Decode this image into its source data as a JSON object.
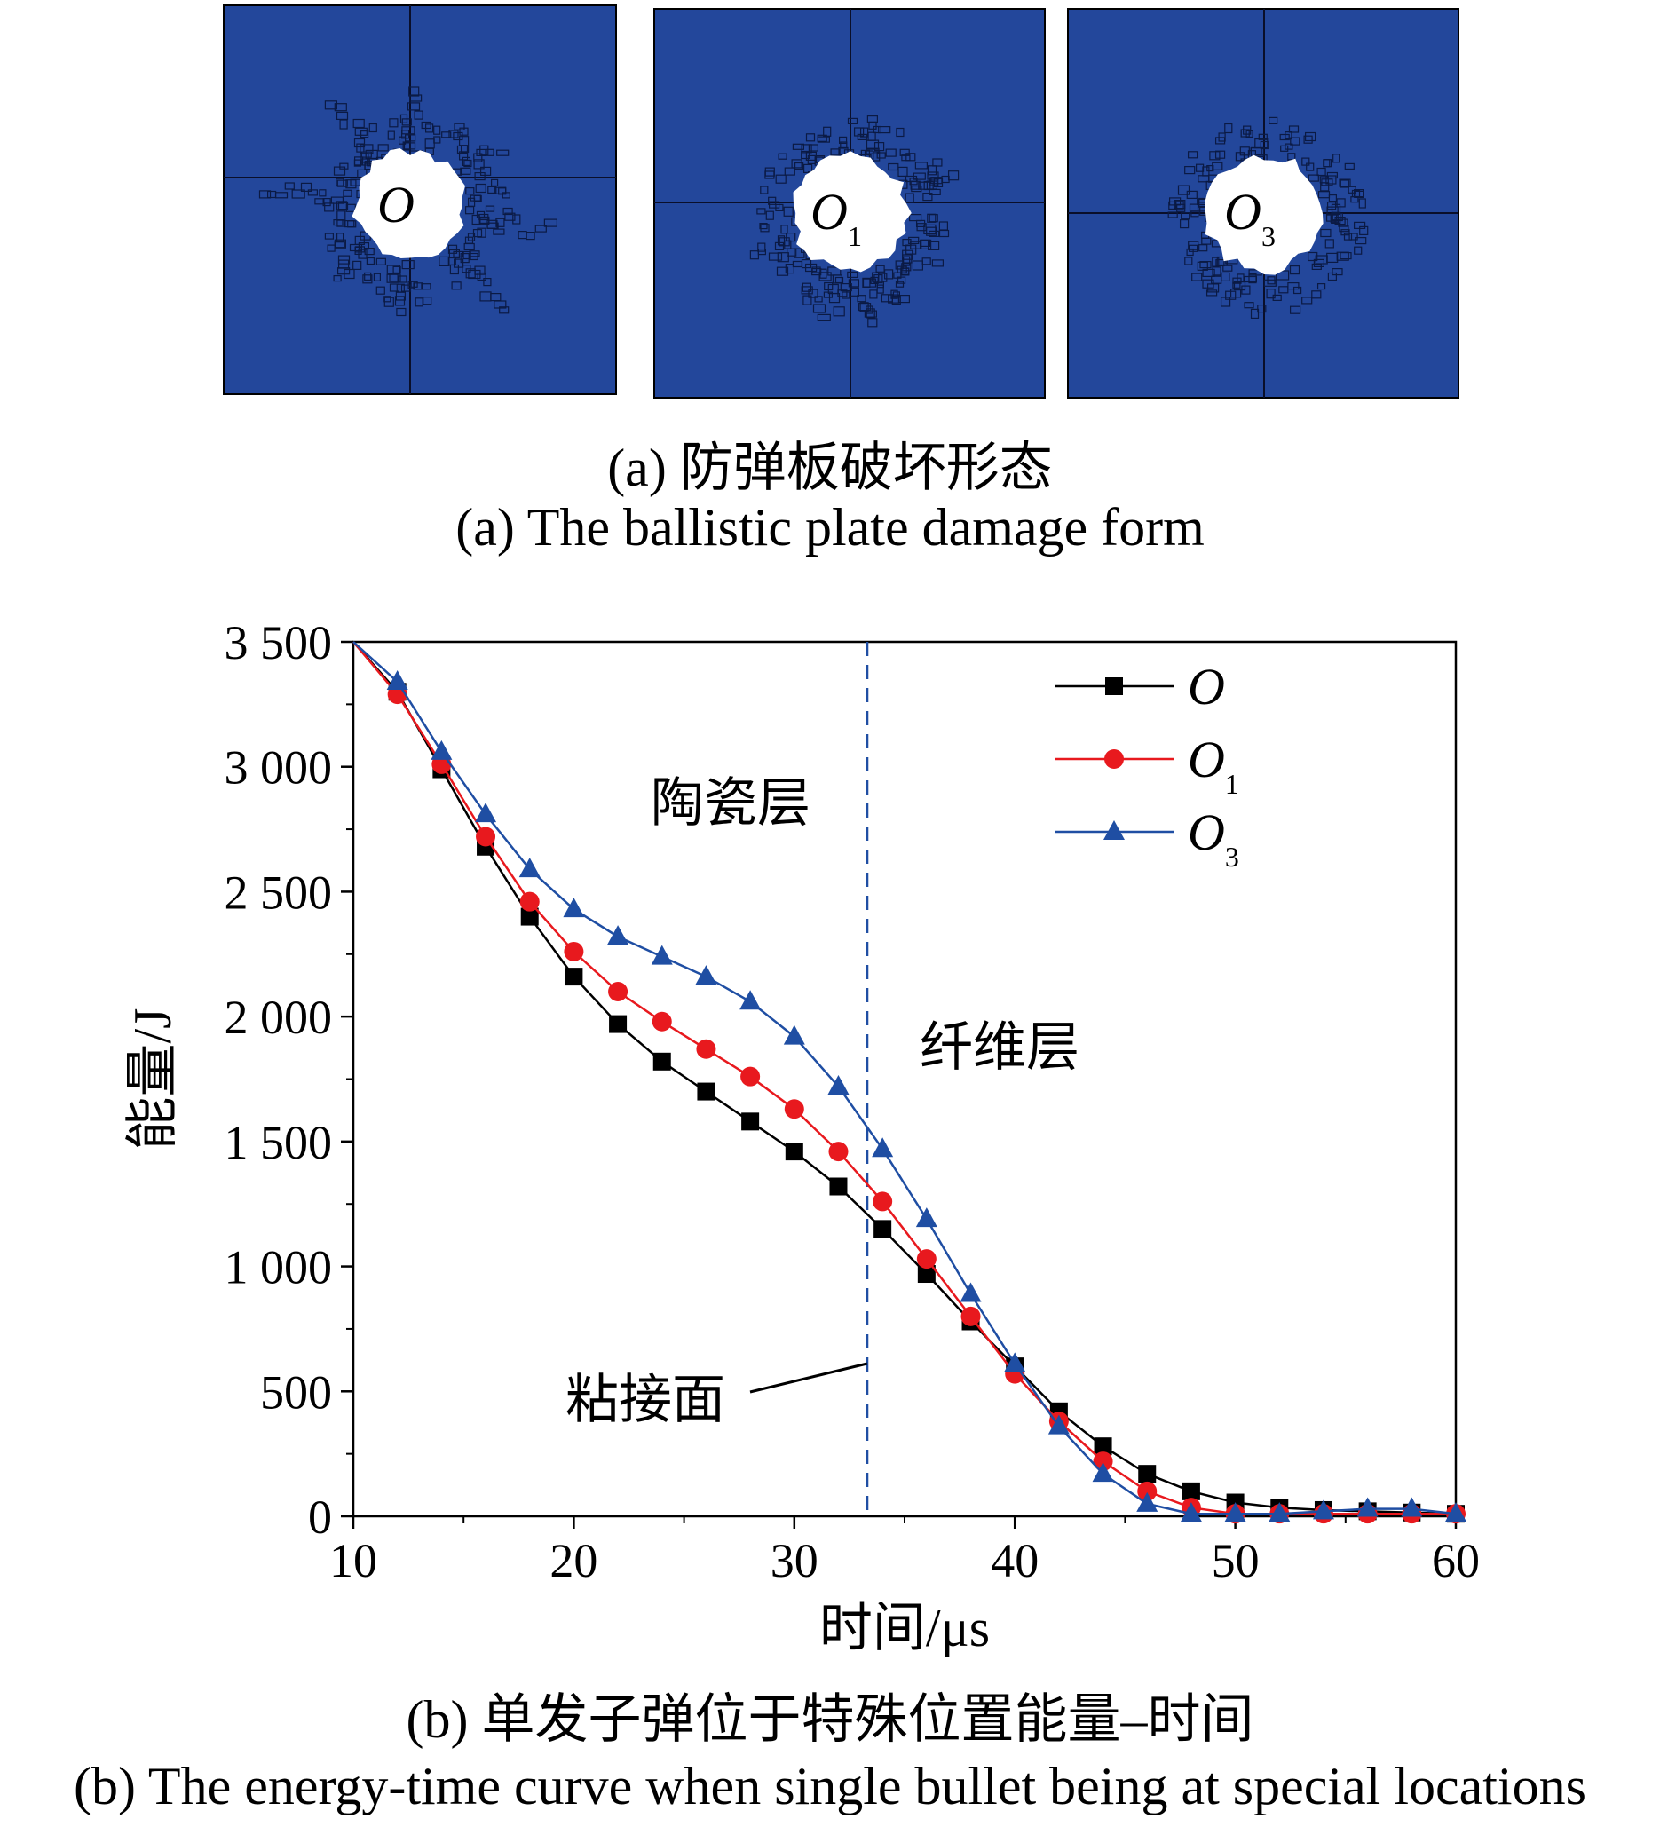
{
  "panel_a": {
    "plates": [
      {
        "label_main": "O",
        "label_sub": ""
      },
      {
        "label_main": "O",
        "label_sub": "1"
      },
      {
        "label_main": "O",
        "label_sub": "3"
      }
    ],
    "colors": {
      "plate": "#23479b",
      "hole": "#ffffff",
      "crack": "#0b1a44"
    },
    "caption_cn": "(a) 防弹板破坏形态",
    "caption_en": "(a) The ballistic plate damage form"
  },
  "chart_data": {
    "type": "line",
    "xlabel": "时间/μs",
    "ylabel": "能量/J",
    "xlim": [
      10,
      60
    ],
    "ylim": [
      0,
      3500
    ],
    "xticks": [
      "10",
      "20",
      "30",
      "40",
      "50",
      "60"
    ],
    "yticks": [
      "0",
      "500",
      "1 000",
      "1 500",
      "2 000",
      "2 500",
      "3 000",
      "3 500"
    ],
    "grid": false,
    "legend_position": "top-right",
    "x": [
      10,
      12,
      14,
      16,
      18,
      20,
      22,
      24,
      26,
      28,
      30,
      32,
      34,
      36,
      38,
      40,
      42,
      44,
      46,
      48,
      50,
      52,
      54,
      56,
      58,
      60
    ],
    "series": [
      {
        "name_main": "O",
        "name_sub": "",
        "color": "#000000",
        "marker": "square",
        "values": [
          3500,
          3300,
          2990,
          2680,
          2400,
          2160,
          1970,
          1820,
          1700,
          1580,
          1460,
          1320,
          1150,
          970,
          780,
          600,
          420,
          280,
          170,
          100,
          55,
          35,
          25,
          20,
          15,
          10
        ]
      },
      {
        "name_main": "O",
        "name_sub": "1",
        "color": "#e8191e",
        "marker": "circle",
        "values": [
          3500,
          3290,
          3010,
          2720,
          2460,
          2260,
          2100,
          1980,
          1870,
          1760,
          1630,
          1460,
          1260,
          1030,
          800,
          570,
          380,
          220,
          100,
          35,
          10,
          10,
          10,
          10,
          10,
          10
        ]
      },
      {
        "name_main": "O",
        "name_sub": "3",
        "color": "#1f4ea3",
        "marker": "triangle",
        "values": [
          3500,
          3340,
          3060,
          2810,
          2590,
          2430,
          2320,
          2240,
          2160,
          2060,
          1920,
          1720,
          1470,
          1190,
          890,
          610,
          360,
          170,
          50,
          10,
          10,
          10,
          20,
          30,
          30,
          10
        ]
      }
    ],
    "annotations": [
      {
        "text": "陶瓷层"
      },
      {
        "text": "纤维层"
      },
      {
        "text": "粘接面"
      }
    ],
    "interface_x": 33.3,
    "caption_cn": "(b) 单发子弹位于特殊位置能量–时间",
    "caption_en": "(b) The energy-time curve when single bullet being at special locations"
  }
}
